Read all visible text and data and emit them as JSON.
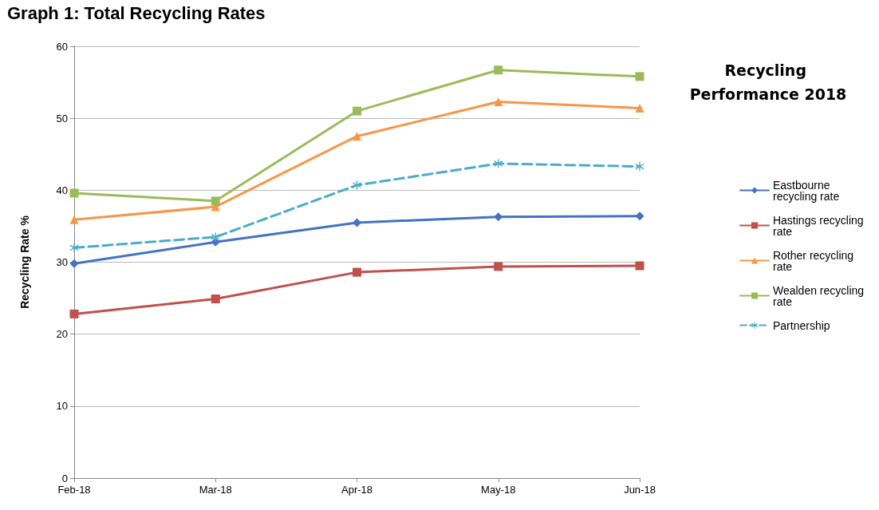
{
  "chart_data": {
    "type": "line",
    "title": "Graph 1: Total Recycling Rates",
    "subtitle": "Recycling Performance 2018",
    "ylabel": "Recycling Rate %",
    "categories": [
      "Feb-18",
      "Mar-18",
      "Apr-18",
      "May-18",
      "Jun-18"
    ],
    "series": [
      {
        "name": "Eastbourne recycling rate",
        "color": "#4472c4",
        "marker": "diamond",
        "values": [
          29.8,
          32.8,
          35.5,
          36.3,
          36.4
        ]
      },
      {
        "name": "Hastings recycling rate",
        "color": "#c0504d",
        "marker": "square",
        "values": [
          22.8,
          24.9,
          28.6,
          29.4,
          29.5
        ]
      },
      {
        "name": "Rother recycling rate",
        "color": "#f79646",
        "marker": "triangle",
        "values": [
          35.9,
          37.7,
          47.5,
          52.3,
          51.4
        ]
      },
      {
        "name": "Wealden recycling rate",
        "color": "#9bbb59",
        "marker": "square",
        "values": [
          39.6,
          38.5,
          51.0,
          56.7,
          55.8
        ]
      },
      {
        "name": "Partnership",
        "color": "#4bacc6",
        "marker": "star",
        "line_style": "dashed",
        "values": [
          32.0,
          33.5,
          40.7,
          43.7,
          43.3
        ]
      }
    ],
    "ylim": [
      0,
      60
    ],
    "yticks": [
      0,
      10,
      20,
      30,
      40,
      50,
      60
    ],
    "grid": "y",
    "legend": "right",
    "line_style": "solid"
  }
}
